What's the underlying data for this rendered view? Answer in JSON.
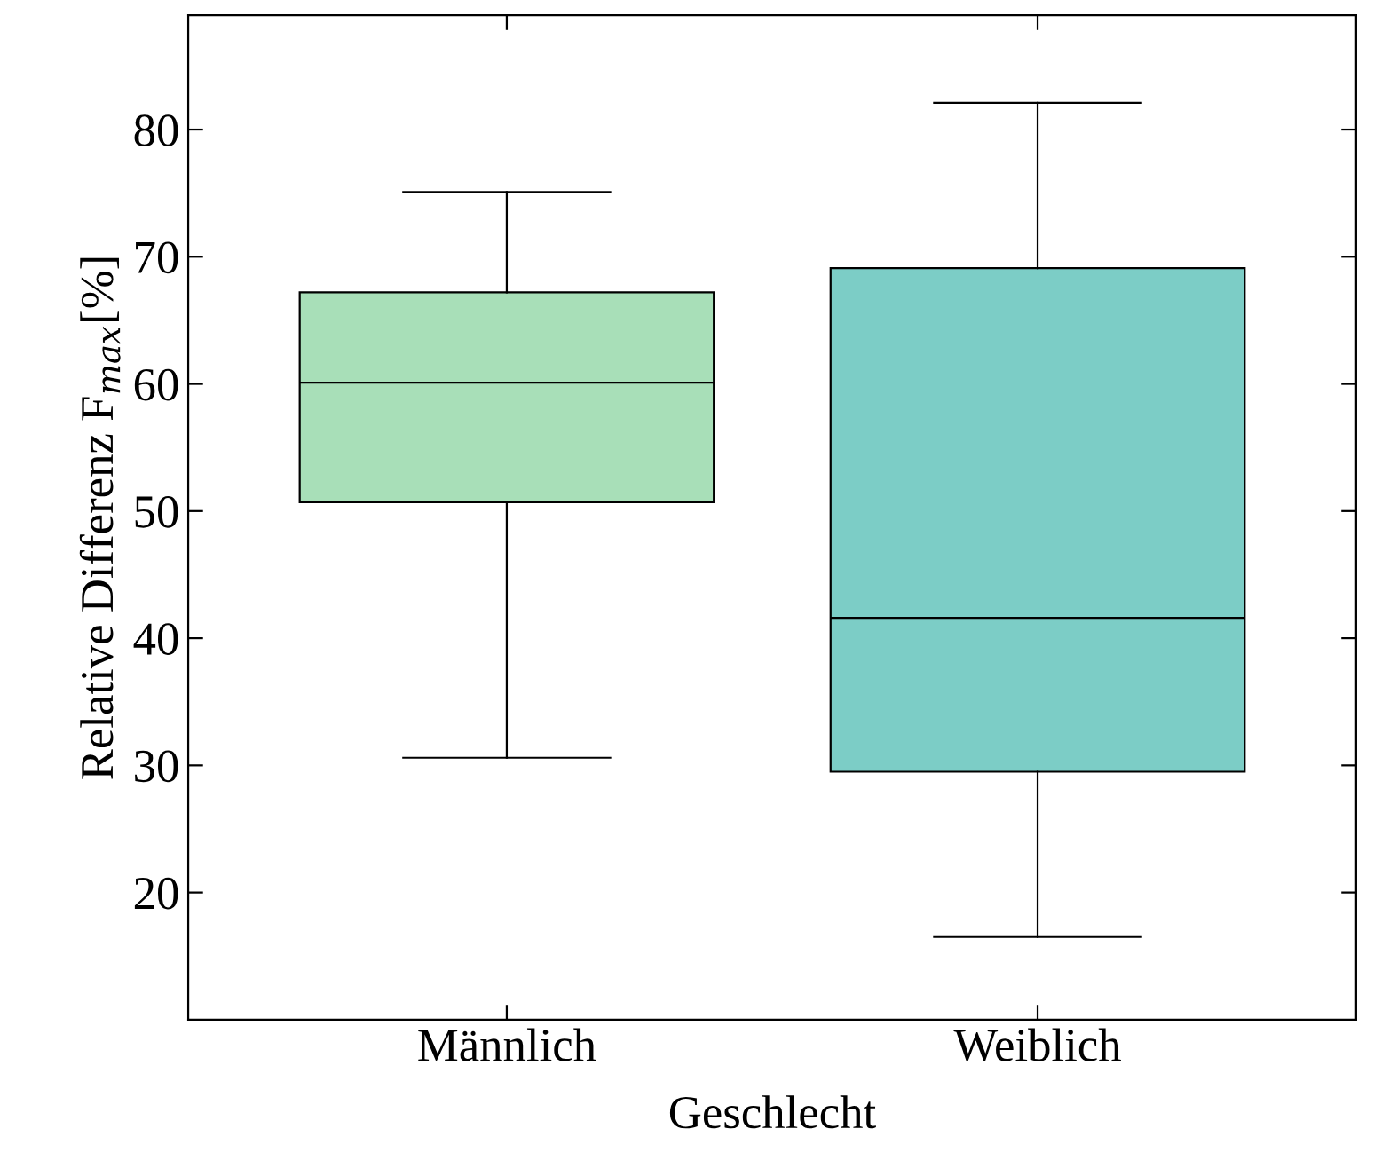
{
  "chart_data": {
    "type": "box",
    "xlabel": "Geschlecht",
    "ylabel": "Relative Differenz F$_{max}$[%]",
    "categories": [
      "Männlich",
      "Weiblich"
    ],
    "colors": [
      "#a8dfb8",
      "#7ccdc6"
    ],
    "boxes": [
      {
        "low": 30.6,
        "q1": 50.7,
        "median": 60.1,
        "q3": 67.2,
        "high": 75.1
      },
      {
        "low": 16.5,
        "q1": 29.5,
        "median": 41.6,
        "q3": 69.1,
        "high": 82.1
      }
    ],
    "ylim": [
      10,
      89
    ],
    "yticks": [
      20,
      30,
      40,
      50,
      60,
      70,
      80
    ],
    "grid": false
  }
}
